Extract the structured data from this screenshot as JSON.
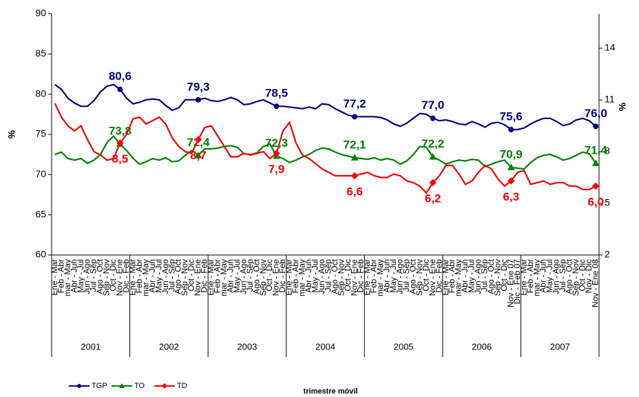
{
  "chart_data": {
    "type": "line",
    "ylabel": "%",
    "y2label": "%",
    "xlabel": "trimestre móvil",
    "ylim": [
      60,
      90
    ],
    "yticks": [
      60,
      65,
      70,
      75,
      80,
      85,
      90
    ],
    "y2lim": [
      2,
      16
    ],
    "y2ticks": [
      2,
      5,
      8,
      11,
      14
    ],
    "groups": [
      "2001",
      "2002",
      "2003",
      "2004",
      "2005",
      "2006",
      "2007"
    ],
    "categories": [
      "Ene - Mar",
      "Feb - Abr",
      "mar - May",
      "Abr - Jun",
      "May - Jul",
      "Jun - Ago",
      "Jul - Sep",
      "Ago - Oct",
      "Sep - Nov",
      "Oct - Dic",
      "Nov - Ene",
      "Dic - Feb",
      "Ene - Mar",
      "Feb - Abr",
      "mar - May",
      "Abr - Jun",
      "May - Jul",
      "Jun - Ago",
      "Jul - Sep",
      "Ago - Oct",
      "Sep - Nov",
      "Oct - Dic",
      "Nov - Ene",
      "Dic - Feb",
      "Ene - Mar",
      "Feb - Abr",
      "mar - May",
      "Abr - Jun",
      "May - Jul",
      "Jun - Ago",
      "Jul - Sep",
      "Ago - Oct",
      "Sep - Nov",
      "Oct - Dic",
      "Nov - Ene",
      "Dic - Feb",
      "Ene - Mar",
      "Feb - Abr",
      "mar - May",
      "Abr - Jun",
      "May - Jul",
      "Jun - Ago",
      "Jul - Sep",
      "Ago - Oct",
      "Sep - Nov",
      "Oct - Dic",
      "Nov - Ene",
      "Dic - Feb",
      "Ene - Mar",
      "Feb - Abr",
      "mar - May",
      "Abr - Jun",
      "May - Jul",
      "Jun - Ago",
      "Jul - Sep",
      "Ago - Oct",
      "Sep - Nov",
      "Oct - Dic",
      "Nov - Ene",
      "Dic - Feb",
      "Ene - Mar",
      "Feb - Abr",
      "mar - May",
      "Abr - Jun",
      "May - Jul",
      "Jun - Ago",
      "Jul - Sep",
      "Ago - Oct",
      "Sep - Nov",
      "Oct - Dic",
      "Nov - Ene 07",
      "Dic - Feb 07",
      "Ene - Mar",
      "Feb - Abr",
      "mar - May",
      "Abr - Jun",
      "May - Jul",
      "Jun - Ago",
      "Jul - Sep",
      "Ago - Oct",
      "Sep - Nov",
      "Oct - Dic",
      "Nov - Dic",
      "Nov - Ene 08"
    ],
    "series": [
      {
        "name": "TGP",
        "color": "#000080",
        "marker": "circle",
        "values": [
          81.2,
          80.6,
          79.5,
          78.9,
          78.5,
          78.5,
          79.2,
          80.3,
          81.0,
          81.2,
          80.6,
          79.5,
          78.8,
          79.0,
          79.3,
          79.4,
          79.3,
          78.6,
          78.0,
          78.3,
          79.3,
          79.3,
          79.3,
          79.5,
          79.2,
          79.1,
          79.3,
          79.6,
          79.3,
          78.7,
          78.8,
          79.1,
          79.3,
          78.9,
          78.5,
          78.5,
          78.4,
          78.3,
          78.2,
          78.4,
          78.2,
          78.8,
          78.7,
          78.2,
          77.8,
          77.4,
          77.2,
          77.2,
          77.2,
          77.2,
          77.1,
          76.8,
          76.3,
          76.0,
          76.4,
          77.0,
          77.6,
          77.5,
          77.0,
          76.7,
          76.8,
          76.6,
          76.3,
          76.2,
          76.6,
          76.3,
          75.9,
          76.4,
          76.5,
          76.2,
          75.6,
          75.6,
          75.8,
          76.3,
          76.7,
          77.0,
          77.0,
          76.6,
          76.1,
          76.3,
          76.8,
          77.0,
          76.7,
          76.0
        ],
        "value_labels": [
          null,
          null,
          null,
          null,
          null,
          null,
          null,
          null,
          null,
          null,
          "80,6",
          null,
          null,
          null,
          null,
          null,
          null,
          null,
          null,
          null,
          null,
          null,
          "79,3",
          null,
          null,
          null,
          null,
          null,
          null,
          null,
          null,
          null,
          null,
          null,
          "78,5",
          null,
          null,
          null,
          null,
          null,
          null,
          null,
          null,
          null,
          null,
          null,
          "77,2",
          null,
          null,
          null,
          null,
          null,
          null,
          null,
          null,
          null,
          null,
          null,
          "77,0",
          null,
          null,
          null,
          null,
          null,
          null,
          null,
          null,
          null,
          null,
          null,
          "75,6",
          null,
          null,
          null,
          null,
          null,
          null,
          null,
          null,
          null,
          null,
          null,
          null,
          "76,0"
        ]
      },
      {
        "name": "TO",
        "color": "#008000",
        "marker": "triangle",
        "values": [
          72.5,
          72.8,
          72.0,
          71.8,
          72.0,
          71.4,
          71.8,
          72.5,
          74.0,
          74.8,
          73.8,
          73.0,
          72.0,
          71.3,
          71.6,
          72.0,
          71.8,
          72.1,
          71.6,
          71.7,
          72.4,
          73.0,
          72.4,
          73.2,
          73.2,
          73.3,
          73.5,
          73.6,
          73.4,
          72.6,
          72.5,
          72.7,
          73.5,
          73.8,
          72.3,
          72.0,
          71.5,
          71.8,
          72.2,
          72.5,
          73.0,
          73.3,
          73.2,
          72.8,
          72.5,
          72.3,
          72.1,
          72.0,
          71.9,
          72.1,
          71.8,
          72.0,
          71.8,
          71.3,
          71.7,
          72.5,
          73.5,
          73.4,
          72.2,
          71.8,
          71.3,
          71.6,
          71.8,
          71.7,
          71.9,
          71.8,
          71.0,
          71.3,
          71.6,
          71.8,
          70.9,
          70.8,
          70.7,
          71.5,
          72.1,
          72.4,
          72.5,
          72.2,
          71.8,
          72.0,
          72.4,
          72.8,
          72.6,
          71.4
        ],
        "value_labels": [
          null,
          null,
          null,
          null,
          null,
          null,
          null,
          null,
          null,
          null,
          "73,8",
          null,
          null,
          null,
          null,
          null,
          null,
          null,
          null,
          null,
          null,
          null,
          "72,4",
          null,
          null,
          null,
          null,
          null,
          null,
          null,
          null,
          null,
          null,
          null,
          "72,3",
          null,
          null,
          null,
          null,
          null,
          null,
          null,
          null,
          null,
          null,
          null,
          "72,1",
          null,
          null,
          null,
          null,
          null,
          null,
          null,
          null,
          null,
          null,
          null,
          "72,2",
          null,
          null,
          null,
          null,
          null,
          null,
          null,
          null,
          null,
          null,
          null,
          "70,9",
          null,
          null,
          null,
          null,
          null,
          null,
          null,
          null,
          null,
          null,
          null,
          null,
          "71,4"
        ]
      },
      {
        "name": "TD",
        "color": "#ff0000",
        "marker": "diamond",
        "axis": "y2",
        "values": [
          10.8,
          10.0,
          9.5,
          9.2,
          9.5,
          8.7,
          8.0,
          7.8,
          7.5,
          7.6,
          8.5,
          9.0,
          9.9,
          10.0,
          9.6,
          9.8,
          10.0,
          9.6,
          8.8,
          8.3,
          8.0,
          7.9,
          8.7,
          9.4,
          9.5,
          8.9,
          8.3,
          7.7,
          7.7,
          7.9,
          7.8,
          7.9,
          8.0,
          7.6,
          7.9,
          9.2,
          9.7,
          8.5,
          7.8,
          7.6,
          7.3,
          7.0,
          6.8,
          6.6,
          6.6,
          6.6,
          6.6,
          6.7,
          6.8,
          6.6,
          6.5,
          6.5,
          6.7,
          6.6,
          6.3,
          6.2,
          6.0,
          5.6,
          6.2,
          6.6,
          7.2,
          7.2,
          6.7,
          6.1,
          6.3,
          6.8,
          7.2,
          7.0,
          6.4,
          6.0,
          6.3,
          6.8,
          6.9,
          6.1,
          6.2,
          6.3,
          6.1,
          6.2,
          6.2,
          6.0,
          6.0,
          5.8,
          5.8,
          6.0
        ],
        "value_labels": [
          null,
          null,
          null,
          null,
          null,
          null,
          null,
          null,
          null,
          null,
          "8,5",
          null,
          null,
          null,
          null,
          null,
          null,
          null,
          null,
          null,
          null,
          null,
          "8,7",
          null,
          null,
          null,
          null,
          null,
          null,
          null,
          null,
          null,
          null,
          null,
          "7,9",
          null,
          null,
          null,
          null,
          null,
          null,
          null,
          null,
          null,
          null,
          null,
          "6,6",
          null,
          null,
          null,
          null,
          null,
          null,
          null,
          null,
          null,
          null,
          null,
          "6,2",
          null,
          null,
          null,
          null,
          null,
          null,
          null,
          null,
          null,
          null,
          null,
          "6,3",
          null,
          null,
          null,
          null,
          null,
          null,
          null,
          null,
          null,
          null,
          null,
          null,
          "6,0"
        ]
      }
    ]
  }
}
